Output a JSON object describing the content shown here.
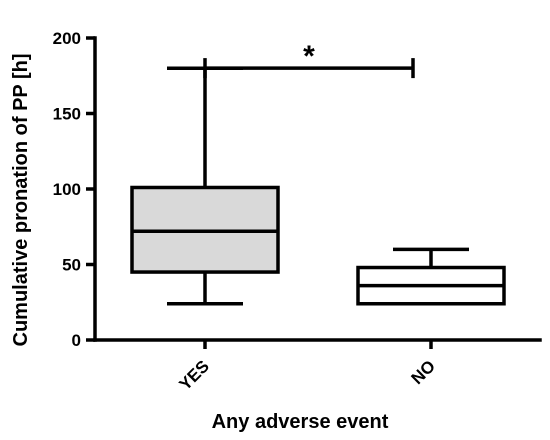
{
  "chart_data": {
    "type": "box",
    "xlabel": "Any adverse event",
    "ylabel": "Cumulative pronation of PP [h]",
    "ylim": [
      0,
      200
    ],
    "yticks": [
      0,
      50,
      100,
      150,
      200
    ],
    "grid": false,
    "legend": "none",
    "categories": [
      "YES",
      "NO"
    ],
    "boxes": [
      {
        "category": "YES",
        "min": 24,
        "q1": 45,
        "median": 72,
        "q3": 101,
        "max": 180,
        "fill": "#d9d9d9"
      },
      {
        "category": "NO",
        "min": 24,
        "q1": 24,
        "median": 36,
        "q3": 48,
        "max": 60,
        "fill": "#ffffff"
      }
    ],
    "significance": {
      "between": [
        "YES",
        "NO"
      ],
      "y": 190,
      "label": "*"
    }
  },
  "colors": {
    "stroke": "#000000",
    "yes_fill": "#d9d9d9",
    "no_fill": "#ffffff"
  }
}
